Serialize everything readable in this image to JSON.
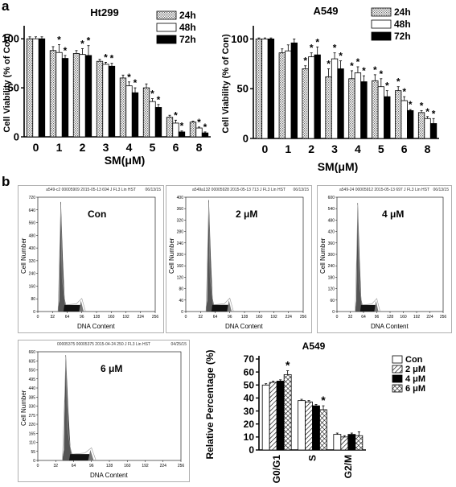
{
  "panel_labels": {
    "a": "a",
    "b": "b"
  },
  "hist_common": {
    "xlabel": "DNA Content",
    "ylabel": "Cell Number",
    "xticks": [
      "0",
      "32",
      "64",
      "96",
      "128",
      "160",
      "192",
      "224",
      "256"
    ]
  },
  "histograms": [
    {
      "label": "Con",
      "header": "a549-c2 00005909 2015-05-13 694 J FL3 Lin HST",
      "date": "06/13/15",
      "yticks": [
        "0",
        "80",
        "160",
        "240",
        "320",
        "400",
        "480",
        "560",
        "640",
        "720"
      ],
      "ymax": 720,
      "g1_peak": 690
    },
    {
      "label": "2 μM",
      "header": "a549a132 00005928 2015-05-13 713 J FL3 Lin HST",
      "date": "06/13/15",
      "yticks": [
        "0",
        "40",
        "80",
        "120",
        "160",
        "200",
        "240",
        "280",
        "320",
        "360",
        "400"
      ],
      "ymax": 400,
      "g1_peak": 390
    },
    {
      "label": "4 μM",
      "header": "a549-24 00005912 2015-05-13 697 J FL3 Lin HST",
      "date": "06/13/15",
      "yticks": [
        "0",
        "60",
        "120",
        "180",
        "240",
        "300",
        "360",
        "420",
        "480",
        "540",
        "600"
      ],
      "ymax": 600,
      "g1_peak": 570
    },
    {
      "label": "6 μM",
      "header": "00005375 00005375 2015-04-24 250 J FL3 Lin HST",
      "date": "04/25/15",
      "yticks": [
        "0",
        "55",
        "110",
        "165",
        "220",
        "275",
        "330",
        "385",
        "440",
        "495",
        "550",
        "605",
        "660"
      ],
      "ymax": 660,
      "g1_peak": 640
    }
  ],
  "chart_data": [
    {
      "type": "bar",
      "title": "Ht299",
      "xlabel": "SM(μM)",
      "ylabel": "Cell Viability (% of Con)",
      "categories": [
        "0",
        "1",
        "2",
        "3",
        "4",
        "5",
        "6",
        "8"
      ],
      "ylim": [
        0,
        110
      ],
      "yticks": [
        0,
        50,
        100
      ],
      "legend_position": "top-right",
      "series": [
        {
          "name": "24h",
          "pattern": "dots",
          "values": [
            100,
            88,
            85,
            77,
            60,
            50,
            20,
            15
          ],
          "errors": [
            2,
            4,
            3,
            2,
            3,
            4,
            2,
            1
          ]
        },
        {
          "name": "48h",
          "pattern": "white",
          "values": [
            100,
            86,
            84,
            74,
            52,
            36,
            14,
            9
          ],
          "errors": [
            2,
            8,
            6,
            2,
            4,
            3,
            3,
            1
          ]
        },
        {
          "name": "72h",
          "pattern": "black",
          "values": [
            100,
            80,
            83,
            72,
            45,
            30,
            5,
            4
          ],
          "errors": [
            2,
            3,
            10,
            3,
            5,
            3,
            1,
            1
          ]
        }
      ],
      "significance": [
        [
          false,
          false,
          false,
          false,
          false,
          false,
          false,
          false
        ],
        [
          false,
          true,
          true,
          true,
          true,
          true,
          true,
          true
        ],
        [
          false,
          true,
          true,
          true,
          true,
          true,
          true,
          true
        ]
      ]
    },
    {
      "type": "bar",
      "title": "A549",
      "xlabel": "SM(μM)",
      "ylabel": "Cell Viability (% of Con)",
      "categories": [
        "0",
        "1",
        "2",
        "3",
        "4",
        "5",
        "6",
        "8"
      ],
      "ylim": [
        0,
        110
      ],
      "yticks": [
        0,
        50,
        100
      ],
      "legend_position": "top-right",
      "series": [
        {
          "name": "24h",
          "pattern": "dots",
          "values": [
            100,
            86,
            70,
            62,
            60,
            58,
            48,
            26
          ],
          "errors": [
            1,
            4,
            3,
            8,
            8,
            6,
            4,
            2
          ]
        },
        {
          "name": "48h",
          "pattern": "white",
          "values": [
            100,
            88,
            82,
            80,
            66,
            52,
            38,
            20
          ],
          "errors": [
            1,
            6,
            4,
            6,
            6,
            8,
            4,
            2
          ]
        },
        {
          "name": "72h",
          "pattern": "black",
          "values": [
            100,
            96,
            84,
            70,
            57,
            42,
            28,
            15
          ],
          "errors": [
            1,
            4,
            8,
            8,
            6,
            6,
            1,
            5
          ]
        }
      ],
      "significance": [
        [
          false,
          false,
          true,
          true,
          true,
          true,
          true,
          true
        ],
        [
          false,
          false,
          true,
          true,
          true,
          true,
          true,
          true
        ],
        [
          false,
          false,
          true,
          true,
          true,
          true,
          true,
          true
        ]
      ]
    },
    {
      "type": "bar",
      "title": "A549",
      "xlabel": "",
      "ylabel": "Relative Percentage (%)",
      "categories": [
        "G0/G1",
        "S",
        "G2/M"
      ],
      "ylim": [
        0,
        70
      ],
      "yticks": [
        0,
        10,
        20,
        30,
        40,
        50,
        60,
        70
      ],
      "legend_position": "top-right",
      "series": [
        {
          "name": "Con",
          "pattern": "white",
          "values": [
            50,
            38,
            12
          ],
          "errors": [
            1,
            1,
            1
          ]
        },
        {
          "name": "2 μM",
          "pattern": "hatch",
          "values": [
            52,
            37,
            10
          ],
          "errors": [
            1,
            1,
            1
          ]
        },
        {
          "name": "4 μM",
          "pattern": "black",
          "values": [
            53,
            34,
            12
          ],
          "errors": [
            1,
            1,
            1
          ]
        },
        {
          "name": "6 μM",
          "pattern": "cross",
          "values": [
            58,
            31,
            11
          ],
          "errors": [
            3,
            3,
            3
          ]
        }
      ],
      "significance": [
        [
          false,
          false,
          false
        ],
        [
          false,
          false,
          false
        ],
        [
          false,
          false,
          false
        ],
        [
          true,
          true,
          false
        ]
      ]
    }
  ]
}
